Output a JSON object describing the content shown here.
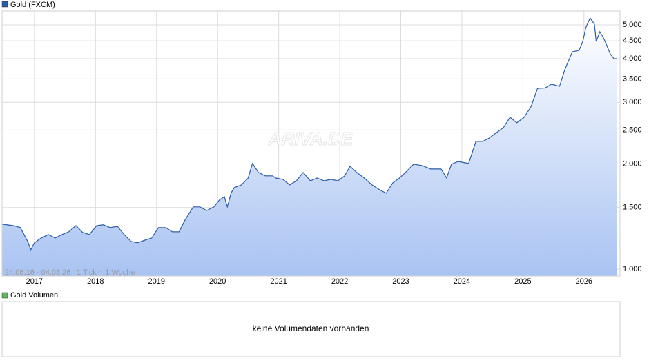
{
  "chart_data": {
    "type": "area",
    "log_scale": true,
    "grid": true,
    "x": [
      2016.47,
      2016.66,
      2016.77,
      2016.89,
      2016.94,
      2017.0,
      2017.11,
      2017.23,
      2017.34,
      2017.45,
      2017.56,
      2017.68,
      2017.79,
      2017.9,
      2018.02,
      2018.13,
      2018.24,
      2018.36,
      2018.47,
      2018.58,
      2018.69,
      2018.81,
      2018.92,
      2019.03,
      2019.15,
      2019.26,
      2019.37,
      2019.46,
      2019.6,
      2019.71,
      2019.82,
      2019.94,
      2020.03,
      2020.11,
      2020.16,
      2020.22,
      2020.27,
      2020.39,
      2020.5,
      2020.57,
      2020.67,
      2020.78,
      2020.9,
      2020.95,
      2021.07,
      2021.18,
      2021.29,
      2021.4,
      2021.52,
      2021.63,
      2021.74,
      2021.86,
      2021.97,
      2022.08,
      2022.17,
      2022.28,
      2022.4,
      2022.53,
      2022.65,
      2022.76,
      2022.87,
      2022.98,
      2023.1,
      2023.21,
      2023.35,
      2023.49,
      2023.66,
      2023.75,
      2023.83,
      2023.94,
      2024.11,
      2024.23,
      2024.34,
      2024.45,
      2024.57,
      2024.68,
      2024.79,
      2024.9,
      2025.02,
      2025.13,
      2025.24,
      2025.36,
      2025.47,
      2025.6,
      2025.69,
      2025.81,
      2025.92,
      2025.98,
      2026.03,
      2026.1,
      2026.17,
      2026.2,
      2026.26,
      2026.32,
      2026.37,
      2026.43,
      2026.49,
      2026.54
    ],
    "series": [
      {
        "name": "Gold (FXCM)",
        "color": "#2a5caa",
        "values": [
          1344,
          1331,
          1314,
          1200,
          1136,
          1189,
          1227,
          1255,
          1227,
          1255,
          1278,
          1331,
          1273,
          1255,
          1331,
          1338,
          1314,
          1325,
          1255,
          1200,
          1189,
          1210,
          1227,
          1314,
          1314,
          1278,
          1278,
          1375,
          1506,
          1506,
          1471,
          1506,
          1576,
          1612,
          1506,
          1649,
          1710,
          1741,
          1822,
          2005,
          1890,
          1848,
          1848,
          1822,
          1806,
          1741,
          1789,
          1890,
          1789,
          1822,
          1789,
          1806,
          1789,
          1848,
          1968,
          1890,
          1822,
          1741,
          1687,
          1649,
          1765,
          1822,
          1907,
          1996,
          1978,
          1933,
          1933,
          1822,
          1996,
          2032,
          2005,
          2319,
          2319,
          2371,
          2460,
          2539,
          2719,
          2622,
          2719,
          2911,
          3290,
          3298,
          3381,
          3335,
          3737,
          4186,
          4224,
          4481,
          4908,
          5231,
          5021,
          4481,
          4777,
          4586,
          4381,
          4130,
          4000,
          4000
        ]
      }
    ],
    "xlim": [
      2016.47,
      2026.59
    ],
    "xticks": [
      2017,
      2018,
      2019,
      2020,
      2021,
      2022,
      2023,
      2024,
      2025,
      2026
    ],
    "ylim": [
      955,
      5475
    ],
    "yticks": [
      {
        "value": 1000,
        "label": "1.000"
      },
      {
        "value": 1500,
        "label": "1.500"
      },
      {
        "value": 2000,
        "label": "2.000"
      },
      {
        "value": 2500,
        "label": "2.500"
      },
      {
        "value": 3000,
        "label": "3.000"
      },
      {
        "value": 3500,
        "label": "3.500"
      },
      {
        "value": 4000,
        "label": "4.000"
      },
      {
        "value": 4500,
        "label": "4.500"
      },
      {
        "value": 5000,
        "label": "5.000"
      }
    ],
    "range_note": "24.06.16 - 04.08.26",
    "tick_note": "1 Tick = 1 Woche",
    "watermark": "ARIVA.DE",
    "volume_panel": {
      "legend": "Gold Volumen",
      "legend_color": "#5cb85c",
      "message": "keine Volumendaten vorhanden"
    }
  }
}
